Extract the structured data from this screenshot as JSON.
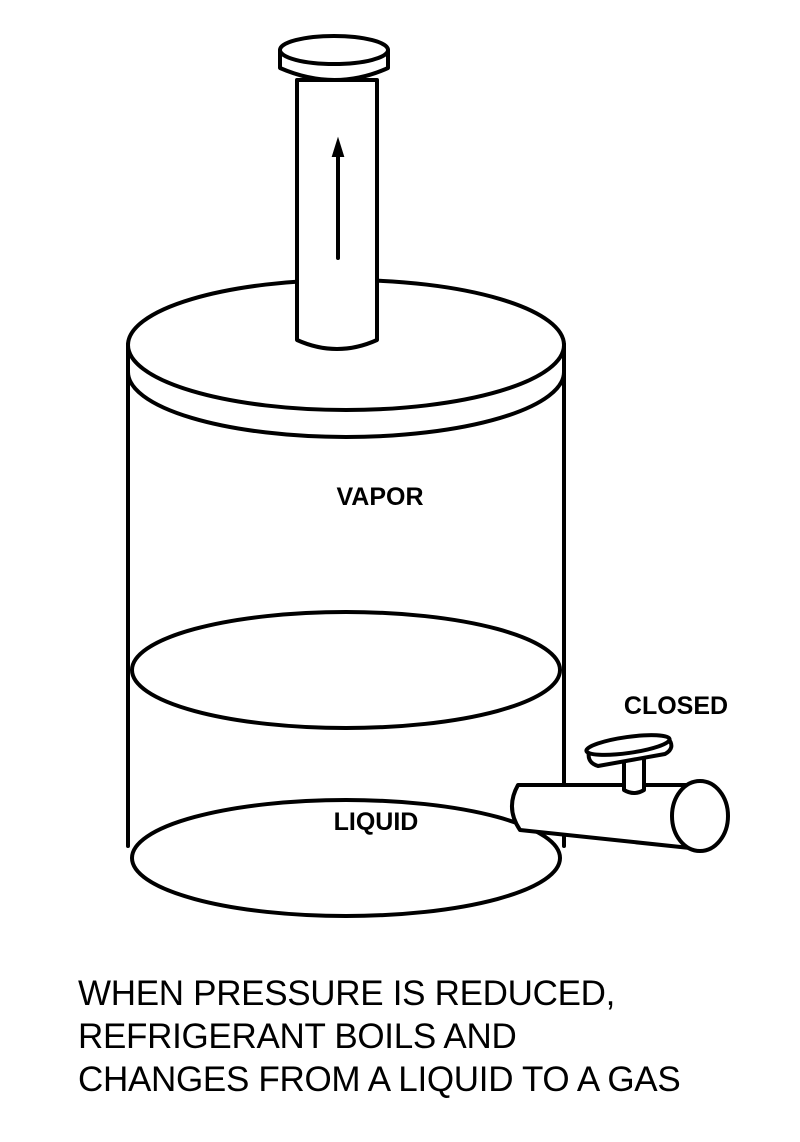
{
  "labels": {
    "vapor": "VAPOR",
    "liquid": "LIQUID",
    "valve_state": "CLOSED"
  },
  "caption": {
    "line1": "WHEN PRESSURE IS REDUCED,",
    "line2": "REFRIGERANT BOILS AND",
    "line3": "CHANGES FROM A LIQUID TO A GAS"
  },
  "colors": {
    "ink": "#000000",
    "background": "#ffffff"
  }
}
